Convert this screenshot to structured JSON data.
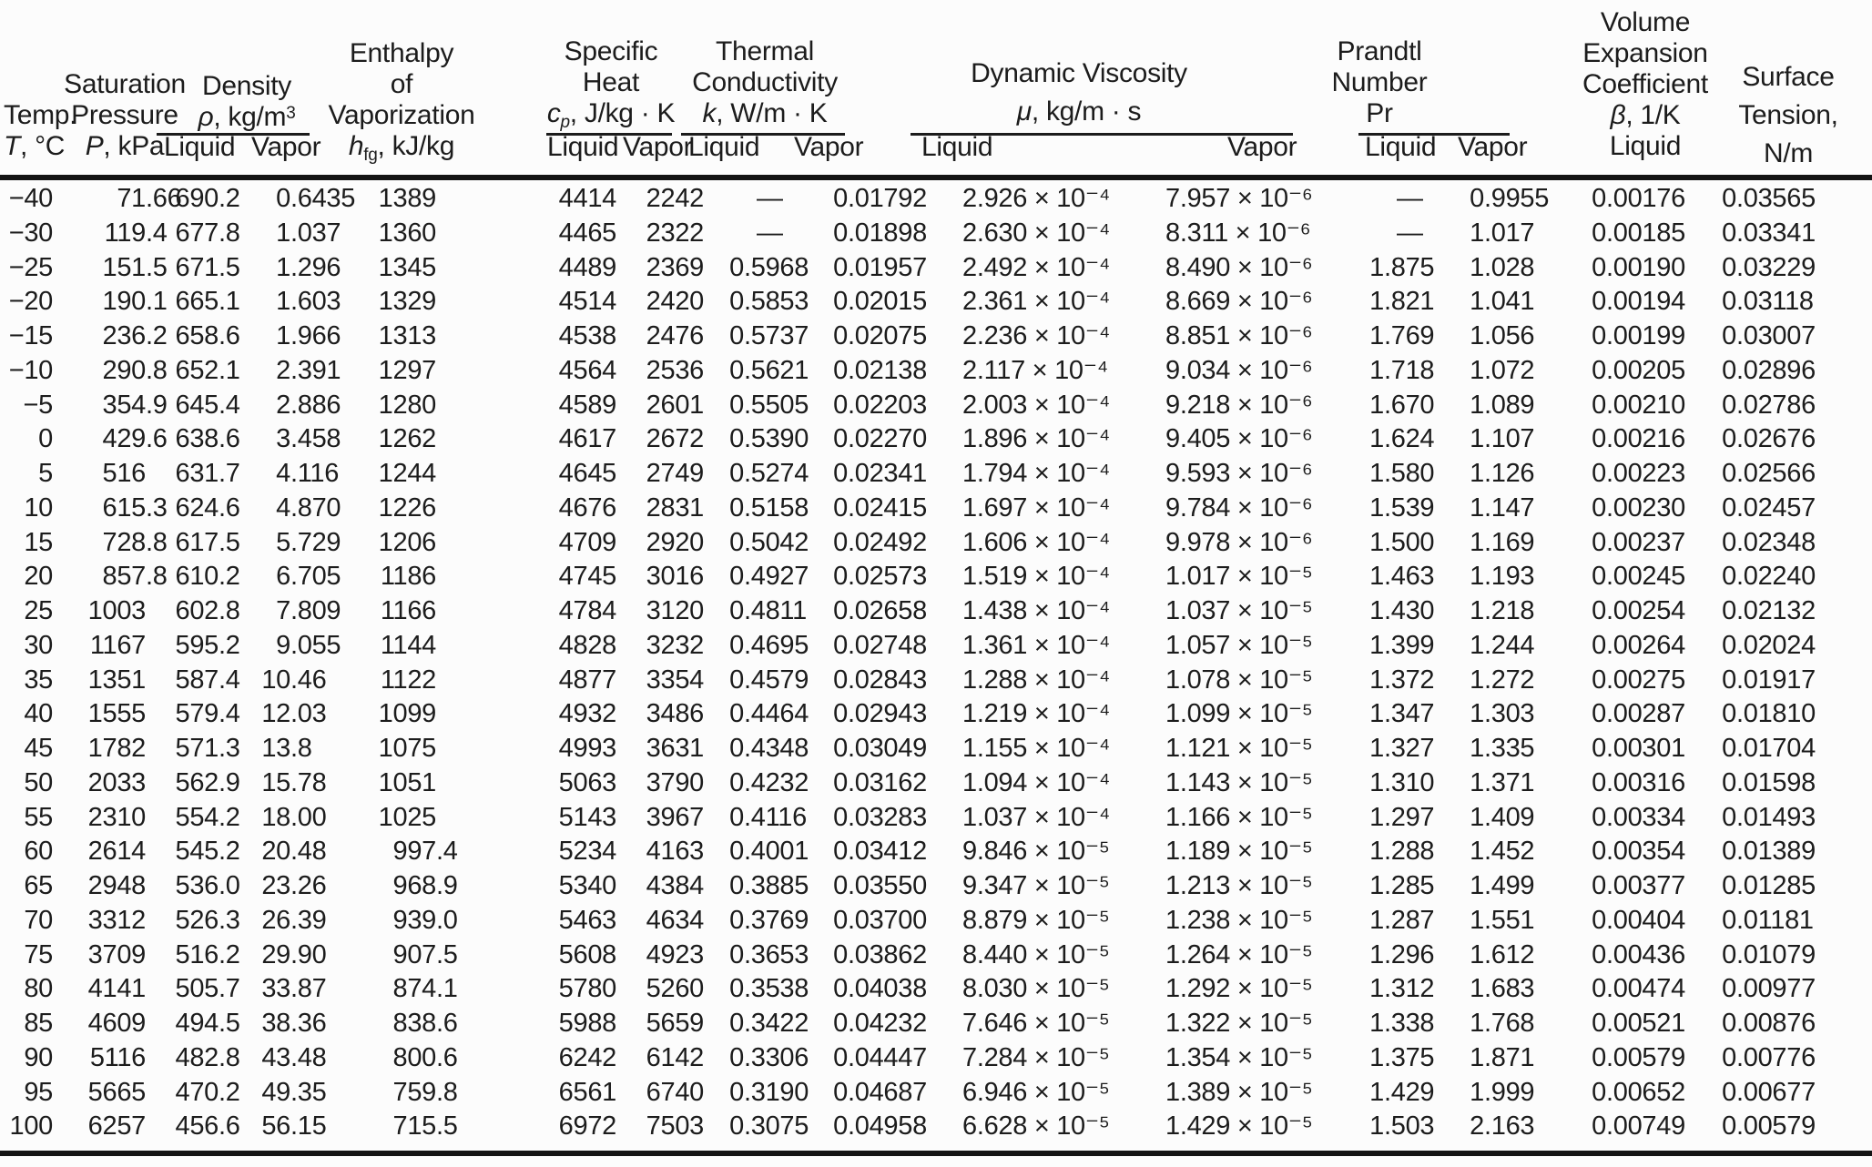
{
  "page": {
    "background": "#fcfcfc",
    "text_color": "#1c1c1c",
    "rule_color": "#141414"
  },
  "header": {
    "temp": {
      "l1": "Temp.",
      "sym": "T",
      "unit": ", °C"
    },
    "pressure": {
      "l1": "Saturation",
      "l2": "Pressure",
      "sym": "P",
      "unit": ", kPa"
    },
    "density": {
      "l1": "Density",
      "sym": "ρ",
      "unit": ", kg/m",
      "unit_sup": "3",
      "liquid": "Liquid",
      "vapor": "Vapor"
    },
    "enthalpy": {
      "l1": "Enthalpy",
      "l2": "of",
      "l3": "Vaporization",
      "sym": "h",
      "sub": "fg",
      "unit": ", kJ/kg"
    },
    "specific_heat": {
      "l1": "Specific",
      "l2": "Heat",
      "sym": "c",
      "sub": "p",
      "unit": ", J/kg · K",
      "liquid": "Liquid",
      "vapor": "Vapor"
    },
    "conductivity": {
      "l1": "Thermal",
      "l2": "Conductivity",
      "sym": "k",
      "unit": ", W/m · K",
      "liquid": "Liquid",
      "vapor": "Vapor"
    },
    "viscosity": {
      "l1": "Dynamic Viscosity",
      "sym": "μ",
      "unit": ", kg/m · s",
      "liquid": "Liquid",
      "vapor": "Vapor"
    },
    "prandtl": {
      "l1": "Prandtl",
      "l2": "Number",
      "l3": "Pr",
      "liquid": "Liquid",
      "vapor": "Vapor"
    },
    "expansion": {
      "l1": "Volume",
      "l2": "Expansion",
      "l3": "Coefficient",
      "sym": "β",
      "unit": ", 1/K",
      "liquid": "Liquid"
    },
    "surface": {
      "l1": "Surface",
      "l2": "Tension,",
      "l3": "N/m"
    }
  },
  "columns": [
    "temp",
    "saturation_pressure",
    "density_liquid",
    "density_vapor",
    "h_fg",
    "cp_liquid",
    "cp_vapor",
    "k_liquid",
    "k_vapor",
    "mu_liquid",
    "mu_vapor",
    "pr_liquid",
    "pr_vapor",
    "beta_liquid",
    "surface_tension"
  ],
  "rows": [
    [
      "−40",
      "71.66",
      "690.2",
      "0.6435",
      "1389",
      "4414",
      "2242",
      "—",
      "0.01792",
      "2.926 × 10⁻⁴",
      "7.957 × 10⁻⁶",
      "—",
      "0.9955",
      "0.00176",
      "0.03565"
    ],
    [
      "−30",
      "119.4",
      "677.8",
      "1.037",
      "1360",
      "4465",
      "2322",
      "—",
      "0.01898",
      "2.630 × 10⁻⁴",
      "8.311 × 10⁻⁶",
      "—",
      "1.017",
      "0.00185",
      "0.03341"
    ],
    [
      "−25",
      "151.5",
      "671.5",
      "1.296",
      "1345",
      "4489",
      "2369",
      "0.5968",
      "0.01957",
      "2.492 × 10⁻⁴",
      "8.490 × 10⁻⁶",
      "1.875",
      "1.028",
      "0.00190",
      "0.03229"
    ],
    [
      "−20",
      "190.1",
      "665.1",
      "1.603",
      "1329",
      "4514",
      "2420",
      "0.5853",
      "0.02015",
      "2.361 × 10⁻⁴",
      "8.669 × 10⁻⁶",
      "1.821",
      "1.041",
      "0.00194",
      "0.03118"
    ],
    [
      "−15",
      "236.2",
      "658.6",
      "1.966",
      "1313",
      "4538",
      "2476",
      "0.5737",
      "0.02075",
      "2.236 × 10⁻⁴",
      "8.851 × 10⁻⁶",
      "1.769",
      "1.056",
      "0.00199",
      "0.03007"
    ],
    [
      "−10",
      "290.8",
      "652.1",
      "2.391",
      "1297",
      "4564",
      "2536",
      "0.5621",
      "0.02138",
      "2.117 × 10⁻⁴",
      "9.034 × 10⁻⁶",
      "1.718",
      "1.072",
      "0.00205",
      "0.02896"
    ],
    [
      "−5",
      "354.9",
      "645.4",
      "2.886",
      "1280",
      "4589",
      "2601",
      "0.5505",
      "0.02203",
      "2.003 × 10⁻⁴",
      "9.218 × 10⁻⁶",
      "1.670",
      "1.089",
      "0.00210",
      "0.02786"
    ],
    [
      "0",
      "429.6",
      "638.6",
      "3.458",
      "1262",
      "4617",
      "2672",
      "0.5390",
      "0.02270",
      "1.896 × 10⁻⁴",
      "9.405 × 10⁻⁶",
      "1.624",
      "1.107",
      "0.00216",
      "0.02676"
    ],
    [
      "5",
      "516",
      "631.7",
      "4.116",
      "1244",
      "4645",
      "2749",
      "0.5274",
      "0.02341",
      "1.794 × 10⁻⁴",
      "9.593 × 10⁻⁶",
      "1.580",
      "1.126",
      "0.00223",
      "0.02566"
    ],
    [
      "10",
      "615.3",
      "624.6",
      "4.870",
      "1226",
      "4676",
      "2831",
      "0.5158",
      "0.02415",
      "1.697 × 10⁻⁴",
      "9.784 × 10⁻⁶",
      "1.539",
      "1.147",
      "0.00230",
      "0.02457"
    ],
    [
      "15",
      "728.8",
      "617.5",
      "5.729",
      "1206",
      "4709",
      "2920",
      "0.5042",
      "0.02492",
      "1.606 × 10⁻⁴",
      "9.978 × 10⁻⁶",
      "1.500",
      "1.169",
      "0.00237",
      "0.02348"
    ],
    [
      "20",
      "857.8",
      "610.2",
      "6.705",
      "1186",
      "4745",
      "3016",
      "0.4927",
      "0.02573",
      "1.519 × 10⁻⁴",
      "1.017 × 10⁻⁵",
      "1.463",
      "1.193",
      "0.00245",
      "0.02240"
    ],
    [
      "25",
      "1003",
      "602.8",
      "7.809",
      "1166",
      "4784",
      "3120",
      "0.4811",
      "0.02658",
      "1.438 × 10⁻⁴",
      "1.037 × 10⁻⁵",
      "1.430",
      "1.218",
      "0.00254",
      "0.02132"
    ],
    [
      "30",
      "1167",
      "595.2",
      "9.055",
      "1144",
      "4828",
      "3232",
      "0.4695",
      "0.02748",
      "1.361 × 10⁻⁴",
      "1.057 × 10⁻⁵",
      "1.399",
      "1.244",
      "0.00264",
      "0.02024"
    ],
    [
      "35",
      "1351",
      "587.4",
      "10.46",
      "1122",
      "4877",
      "3354",
      "0.4579",
      "0.02843",
      "1.288 × 10⁻⁴",
      "1.078 × 10⁻⁵",
      "1.372",
      "1.272",
      "0.00275",
      "0.01917"
    ],
    [
      "40",
      "1555",
      "579.4",
      "12.03",
      "1099",
      "4932",
      "3486",
      "0.4464",
      "0.02943",
      "1.219 × 10⁻⁴",
      "1.099 × 10⁻⁵",
      "1.347",
      "1.303",
      "0.00287",
      "0.01810"
    ],
    [
      "45",
      "1782",
      "571.3",
      "13.8",
      "1075",
      "4993",
      "3631",
      "0.4348",
      "0.03049",
      "1.155 × 10⁻⁴",
      "1.121 × 10⁻⁵",
      "1.327",
      "1.335",
      "0.00301",
      "0.01704"
    ],
    [
      "50",
      "2033",
      "562.9",
      "15.78",
      "1051",
      "5063",
      "3790",
      "0.4232",
      "0.03162",
      "1.094 × 10⁻⁴",
      "1.143 × 10⁻⁵",
      "1.310",
      "1.371",
      "0.00316",
      "0.01598"
    ],
    [
      "55",
      "2310",
      "554.2",
      "18.00",
      "1025",
      "5143",
      "3967",
      "0.4116",
      "0.03283",
      "1.037 × 10⁻⁴",
      "1.166 × 10⁻⁵",
      "1.297",
      "1.409",
      "0.00334",
      "0.01493"
    ],
    [
      "60",
      "2614",
      "545.2",
      "20.48",
      "997.4",
      "5234",
      "4163",
      "0.4001",
      "0.03412",
      "9.846 × 10⁻⁵",
      "1.189 × 10⁻⁵",
      "1.288",
      "1.452",
      "0.00354",
      "0.01389"
    ],
    [
      "65",
      "2948",
      "536.0",
      "23.26",
      "968.9",
      "5340",
      "4384",
      "0.3885",
      "0.03550",
      "9.347 × 10⁻⁵",
      "1.213 × 10⁻⁵",
      "1.285",
      "1.499",
      "0.00377",
      "0.01285"
    ],
    [
      "70",
      "3312",
      "526.3",
      "26.39",
      "939.0",
      "5463",
      "4634",
      "0.3769",
      "0.03700",
      "8.879 × 10⁻⁵",
      "1.238 × 10⁻⁵",
      "1.287",
      "1.551",
      "0.00404",
      "0.01181"
    ],
    [
      "75",
      "3709",
      "516.2",
      "29.90",
      "907.5",
      "5608",
      "4923",
      "0.3653",
      "0.03862",
      "8.440 × 10⁻⁵",
      "1.264 × 10⁻⁵",
      "1.296",
      "1.612",
      "0.00436",
      "0.01079"
    ],
    [
      "80",
      "4141",
      "505.7",
      "33.87",
      "874.1",
      "5780",
      "5260",
      "0.3538",
      "0.04038",
      "8.030 × 10⁻⁵",
      "1.292 × 10⁻⁵",
      "1.312",
      "1.683",
      "0.00474",
      "0.00977"
    ],
    [
      "85",
      "4609",
      "494.5",
      "38.36",
      "838.6",
      "5988",
      "5659",
      "0.3422",
      "0.04232",
      "7.646 × 10⁻⁵",
      "1.322 × 10⁻⁵",
      "1.338",
      "1.768",
      "0.00521",
      "0.00876"
    ],
    [
      "90",
      "5116",
      "482.8",
      "43.48",
      "800.6",
      "6242",
      "6142",
      "0.3306",
      "0.04447",
      "7.284 × 10⁻⁵",
      "1.354 × 10⁻⁵",
      "1.375",
      "1.871",
      "0.00579",
      "0.00776"
    ],
    [
      "95",
      "5665",
      "470.2",
      "49.35",
      "759.8",
      "6561",
      "6740",
      "0.3190",
      "0.04687",
      "6.946 × 10⁻⁵",
      "1.389 × 10⁻⁵",
      "1.429",
      "1.999",
      "0.00652",
      "0.00677"
    ],
    [
      "100",
      "6257",
      "456.6",
      "56.15",
      "715.5",
      "6972",
      "7503",
      "0.3075",
      "0.04958",
      "6.628 × 10⁻⁵",
      "1.429 × 10⁻⁵",
      "1.503",
      "2.163",
      "0.00749",
      "0.00579"
    ]
  ]
}
